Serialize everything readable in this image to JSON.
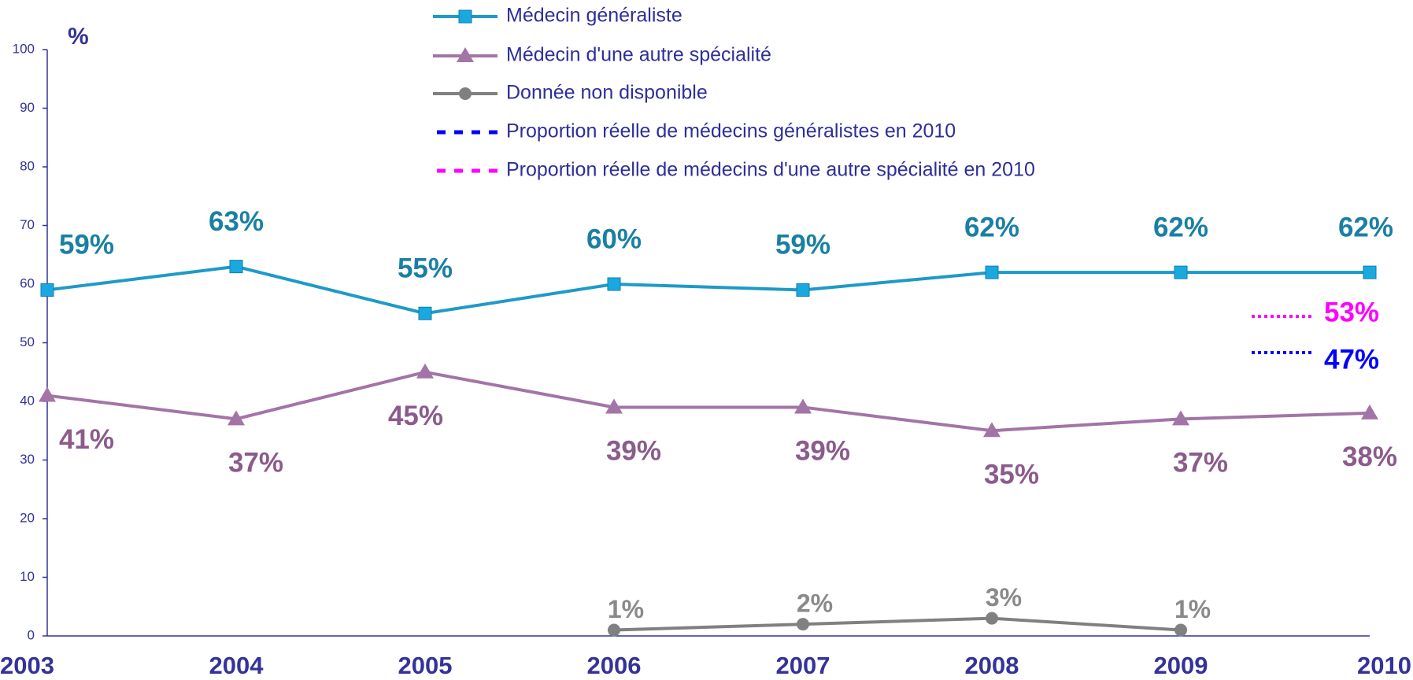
{
  "chart_data": {
    "type": "line",
    "y_axis_label": "%",
    "categories": [
      "2003",
      "2004",
      "2005",
      "2006",
      "2007",
      "2008",
      "2009",
      "2010"
    ],
    "ylim": [
      0,
      100
    ],
    "yticks": [
      0,
      10,
      20,
      30,
      40,
      50,
      60,
      70,
      80,
      90,
      100
    ],
    "series": [
      {
        "name": "Médecin généraliste",
        "color": "#1e9ac7",
        "label_color": "#1a80a3",
        "marker": "square",
        "values": [
          59,
          63,
          55,
          60,
          59,
          62,
          62,
          62
        ],
        "value_labels": [
          "59%",
          "63%",
          "55%",
          "60%",
          "59%",
          "62%",
          "62%",
          "62%"
        ]
      },
      {
        "name": "Médecin d'une autre spécialité",
        "color": "#a374a6",
        "label_color": "#8b5b8c",
        "marker": "triangle",
        "values": [
          41,
          37,
          45,
          39,
          39,
          35,
          37,
          38
        ],
        "value_labels": [
          "41%",
          "37%",
          "45%",
          "39%",
          "39%",
          "35%",
          "37%",
          "38%"
        ]
      },
      {
        "name": "Donnée non disponible",
        "color": "#808080",
        "label_color": "#8a8a8a",
        "marker": "circle",
        "values": [
          null,
          null,
          null,
          1,
          2,
          3,
          1,
          null
        ],
        "value_labels": [
          null,
          null,
          null,
          "1%",
          "2%",
          "3%",
          "1%",
          null
        ]
      }
    ],
    "reference_lines": [
      {
        "name": "Proportion réelle de médecins généralistes en 2010",
        "color": "#0000ff",
        "value": 47,
        "value_label": "47%"
      },
      {
        "name": "Proportion réelle de médecins d'une autre spécialité en 2010",
        "color": "#ff00ff",
        "value": 53,
        "value_label": "53%"
      }
    ]
  }
}
